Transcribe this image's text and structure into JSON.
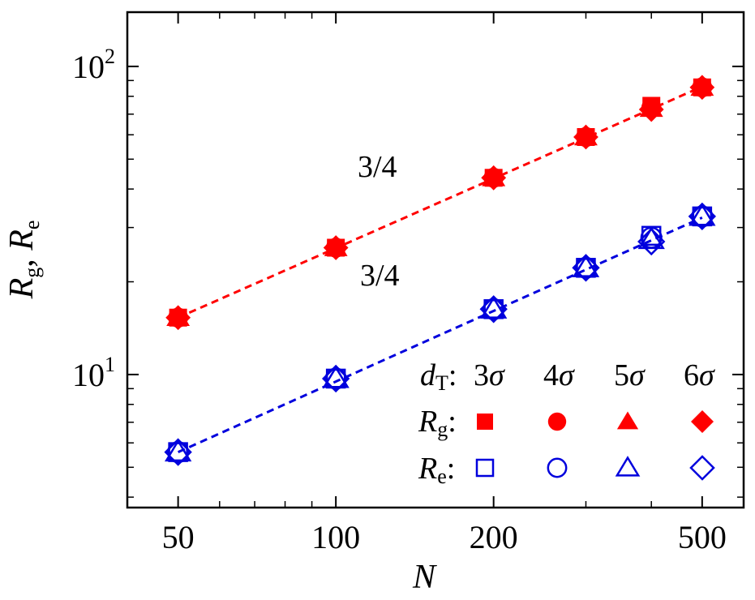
{
  "chart_data": {
    "type": "scatter",
    "xscale": "log",
    "yscale": "log",
    "xlim": [
      40,
      600
    ],
    "ylim": [
      3.7,
      150
    ],
    "xticks": [
      {
        "value": 50,
        "label": "50"
      },
      {
        "value": 100,
        "label": "100"
      },
      {
        "value": 200,
        "label": "200"
      },
      {
        "value": 500,
        "label": "500"
      }
    ],
    "yticks": [
      {
        "value": 10,
        "base": "10",
        "exp": "1"
      },
      {
        "value": 100,
        "base": "10",
        "exp": "2"
      }
    ],
    "xlabel": "N",
    "ylabel": {
      "r1": "R",
      "s1": "g",
      "sep": ", ",
      "r2": "R",
      "s2": "e"
    },
    "x": [
      50,
      100,
      200,
      300,
      400,
      500
    ],
    "series": [
      {
        "name": "Rg 3σ",
        "group": "Rg",
        "marker": "square",
        "filled": true,
        "color": "#ff0000",
        "values": [
          15.3,
          25.8,
          43.5,
          59.0,
          74.5,
          85.5
        ]
      },
      {
        "name": "Rg 4σ",
        "group": "Rg",
        "marker": "circle",
        "filled": true,
        "color": "#ff0000",
        "values": [
          15.3,
          25.8,
          43.5,
          59.0,
          73.5,
          85.5
        ]
      },
      {
        "name": "Rg 5σ",
        "group": "Rg",
        "marker": "triangle",
        "filled": true,
        "color": "#ff0000",
        "values": [
          15.3,
          25.8,
          43.5,
          59.0,
          73.0,
          85.5
        ]
      },
      {
        "name": "Rg 6σ",
        "group": "Rg",
        "marker": "diamond",
        "filled": true,
        "color": "#ff0000",
        "values": [
          15.3,
          25.8,
          43.5,
          59.0,
          72.5,
          85.5
        ]
      },
      {
        "name": "Re 3σ",
        "group": "Re",
        "marker": "square",
        "filled": false,
        "color": "#0000dd",
        "values": [
          5.6,
          9.7,
          16.3,
          22.2,
          28.2,
          32.6
        ]
      },
      {
        "name": "Re 4σ",
        "group": "Re",
        "marker": "circle",
        "filled": false,
        "color": "#0000dd",
        "values": [
          5.6,
          9.7,
          16.3,
          22.2,
          27.8,
          32.6
        ]
      },
      {
        "name": "Re 5σ",
        "group": "Re",
        "marker": "triangle",
        "filled": false,
        "color": "#0000dd",
        "values": [
          5.6,
          9.7,
          16.3,
          22.2,
          27.4,
          32.6
        ]
      },
      {
        "name": "Re 6σ",
        "group": "Re",
        "marker": "diamond",
        "filled": false,
        "color": "#0000dd",
        "values": [
          5.6,
          9.7,
          16.3,
          22.2,
          27.0,
          32.6
        ]
      }
    ],
    "fits": [
      {
        "name": "Rg fit",
        "slope_label": "3/4",
        "color": "#ff0000",
        "x_range": [
          50,
          500
        ],
        "y_range": [
          15.3,
          86.0
        ]
      },
      {
        "name": "Re fit",
        "slope_label": "3/4",
        "color": "#0000dd",
        "x_range": [
          50,
          500
        ],
        "y_range": [
          5.6,
          32.3
        ]
      }
    ],
    "legend": {
      "header": {
        "label": "d",
        "sub": "T",
        "colon": ":"
      },
      "columns": [
        {
          "num": "3",
          "sym": "σ",
          "marker": "square"
        },
        {
          "num": "4",
          "sym": "σ",
          "marker": "circle"
        },
        {
          "num": "5",
          "sym": "σ",
          "marker": "triangle"
        },
        {
          "num": "6",
          "sym": "σ",
          "marker": "diamond"
        }
      ],
      "rows": [
        {
          "label": "R",
          "sub": "g",
          "colon": ":",
          "filled": true,
          "color": "#ff0000"
        },
        {
          "label": "R",
          "sub": "e",
          "colon": ":",
          "filled": false,
          "color": "#0000dd"
        }
      ]
    }
  }
}
